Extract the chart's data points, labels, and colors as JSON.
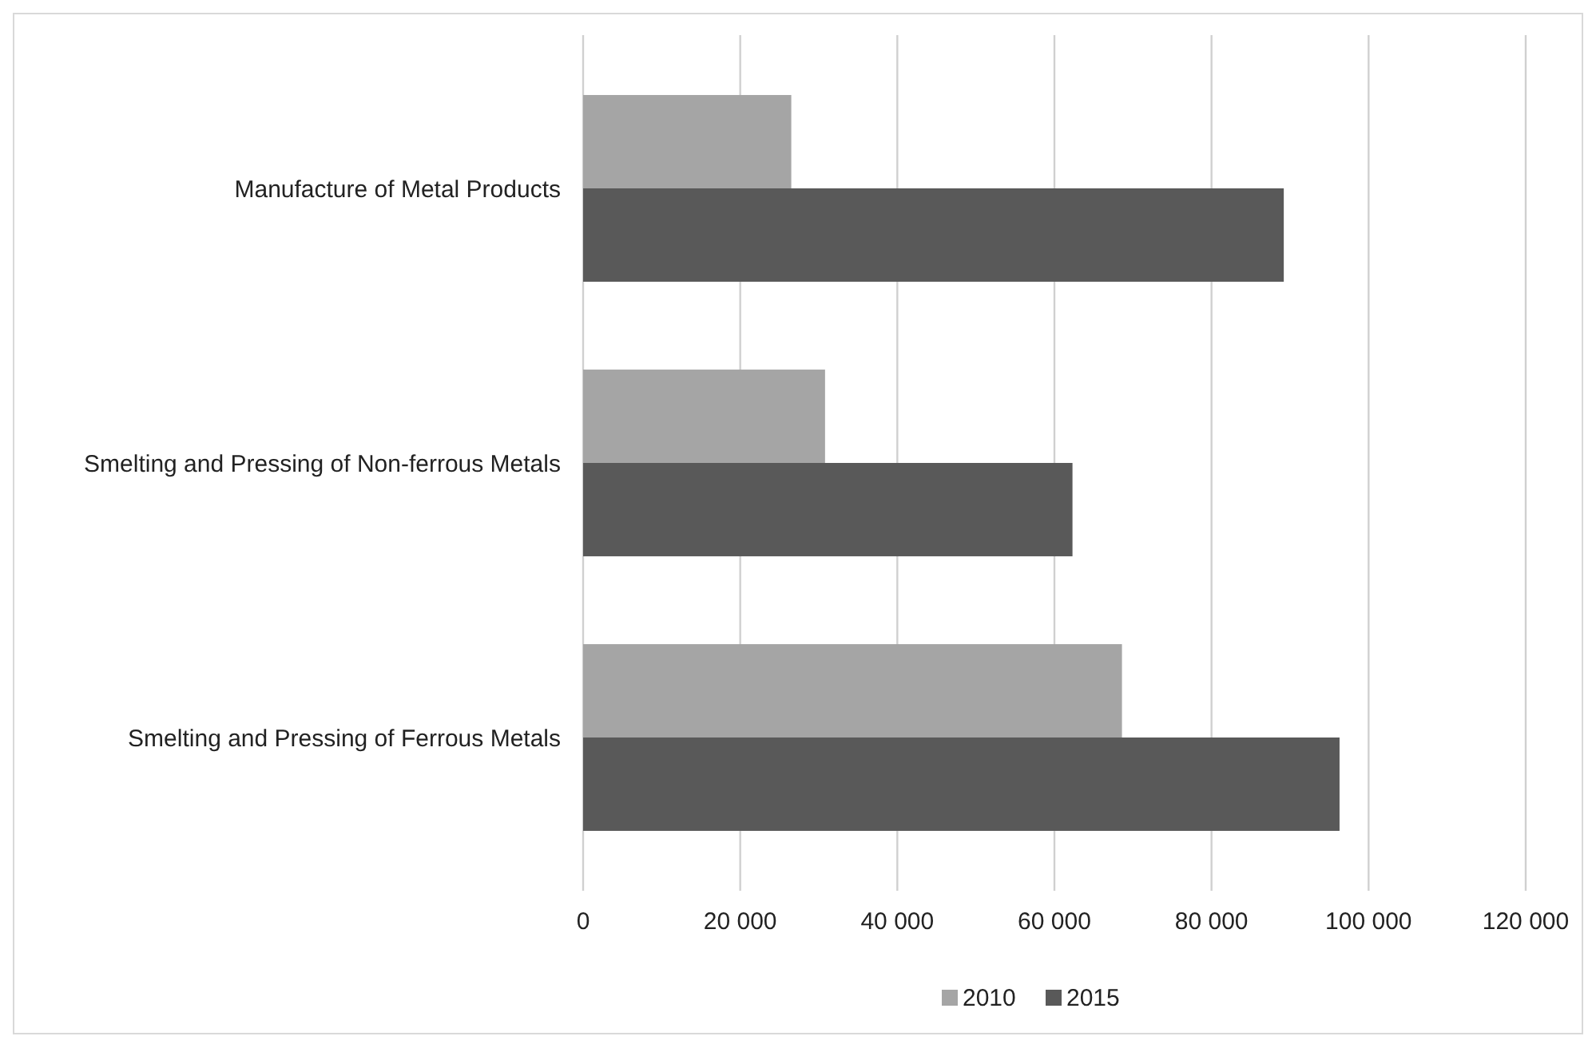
{
  "chart_data": {
    "type": "bar",
    "orientation": "horizontal",
    "categories": [
      "Manufacture of Metal Products",
      "Smelting and Pressing of Non-ferrous Metals",
      "Smelting and Pressing of Ferrous Metals"
    ],
    "series": [
      {
        "name": "2010",
        "color": "#a5a5a5",
        "values": [
          26500,
          30800,
          68600
        ]
      },
      {
        "name": "2015",
        "color": "#595959",
        "values": [
          89200,
          62300,
          96300
        ]
      }
    ],
    "xlim": [
      0,
      120000
    ],
    "xticks": [
      0,
      {
        "value": 20000,
        "label": "20 000"
      },
      {
        "value": 40000,
        "label": "40 000"
      },
      {
        "value": 60000,
        "label": "60 000"
      },
      {
        "value": 80000,
        "label": "80 000"
      },
      {
        "value": 100000,
        "label": "100 000"
      },
      {
        "value": 120000,
        "label": "120 000"
      }
    ],
    "grid": "x",
    "legend": "bottom"
  }
}
